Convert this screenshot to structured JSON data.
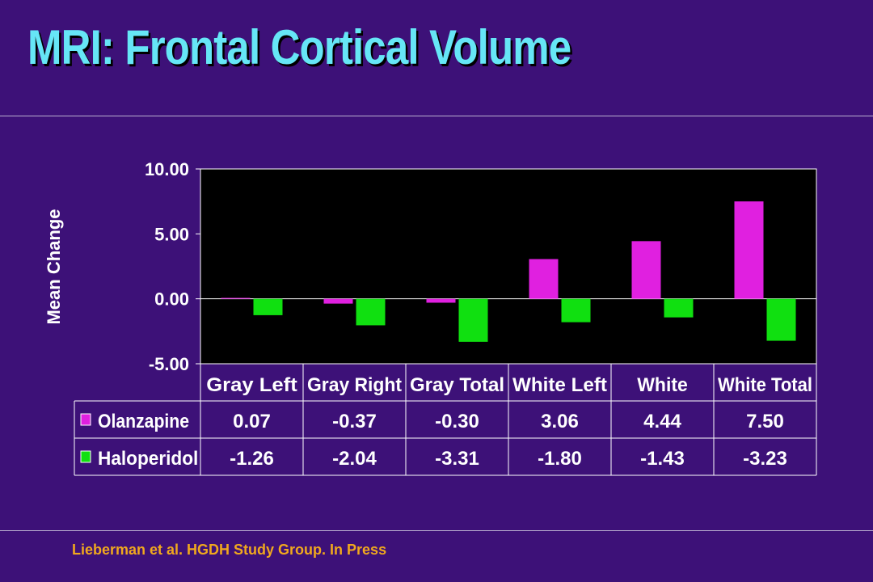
{
  "title": "MRI: Frontal Cortical Volume",
  "footer": "Lieberman et al. HGDH Study Group. In Press",
  "colors": {
    "background": "#3d1178",
    "title": "#66e6f6",
    "plot_area": "#000000",
    "olanzapine": "#e020e0",
    "haloperidol": "#10e010",
    "footer": "#f0a81e"
  },
  "chart_data": {
    "type": "bar",
    "ylabel": "Mean Change",
    "ylim": [
      -5,
      10
    ],
    "yticks": [
      "10.00",
      "5.00",
      "0.00",
      "-5.00"
    ],
    "categories": [
      "Gray Left",
      "Gray Right",
      "Gray Total",
      "White Left",
      "White",
      "White Total"
    ],
    "series": [
      {
        "name": "Olanzapine",
        "values": [
          0.07,
          -0.37,
          -0.3,
          3.06,
          4.44,
          7.5
        ],
        "labels": [
          "0.07",
          "-0.37",
          "-0.30",
          "3.06",
          "4.44",
          "7.50"
        ]
      },
      {
        "name": "Haloperidol",
        "values": [
          -1.26,
          -2.04,
          -3.31,
          -1.8,
          -1.43,
          -3.23
        ],
        "labels": [
          "-1.26",
          "-2.04",
          "-3.31",
          "-1.80",
          "-1.43",
          "-3.23"
        ]
      }
    ],
    "legend": "data-table",
    "grid": false
  }
}
